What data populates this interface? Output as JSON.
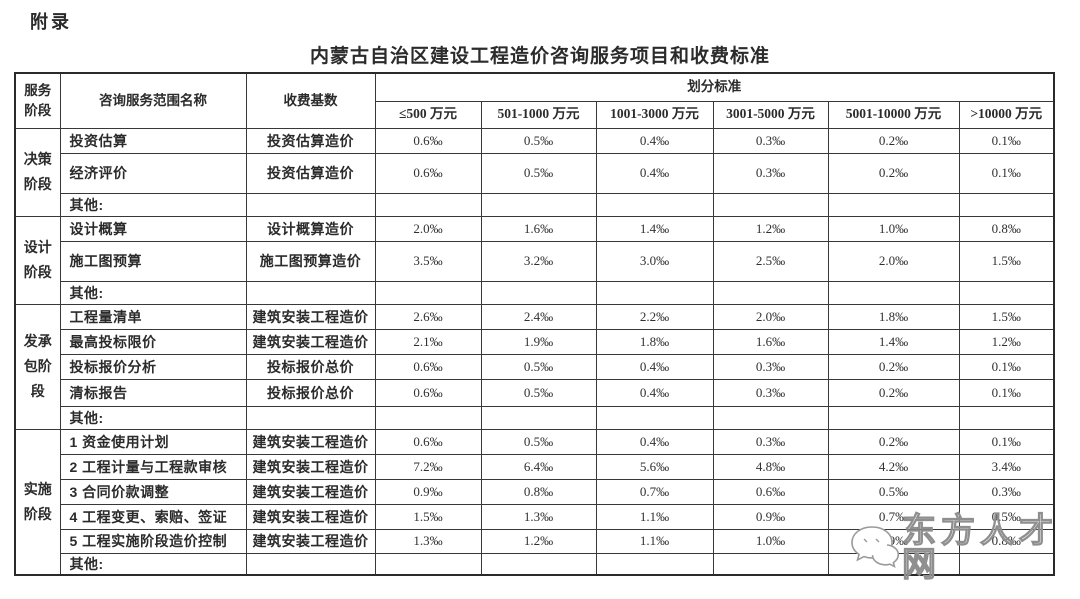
{
  "appendix_label": "附录",
  "title": "内蒙古自治区建设工程造价咨询服务项目和收费标准",
  "table": {
    "col_stage": "服务\n阶段",
    "col_scope": "咨询服务范围名称",
    "col_base": "收费基数",
    "col_standard": "划分标准",
    "ranges": [
      "≤500 万元",
      "501-1000 万元",
      "1001-3000 万元",
      "3001-5000 万元",
      "5001-10000 万元",
      ">10000 万元"
    ],
    "groups": [
      {
        "stage": "决策\n阶段",
        "rows": [
          {
            "name": "投资估算",
            "base": "投资估算造价",
            "values": [
              "0.6‰",
              "0.5‰",
              "0.4‰",
              "0.3‰",
              "0.2‰",
              "0.1‰"
            ]
          },
          {
            "name": "经济评价",
            "base": "投资估算造价",
            "values": [
              "0.6‰",
              "0.5‰",
              "0.4‰",
              "0.3‰",
              "0.2‰",
              "0.1‰"
            ]
          },
          {
            "name": "其他:",
            "base": "",
            "values": [
              "",
              "",
              "",
              "",
              "",
              ""
            ]
          }
        ]
      },
      {
        "stage": "设计\n阶段",
        "rows": [
          {
            "name": "设计概算",
            "base": "设计概算造价",
            "values": [
              "2.0‰",
              "1.6‰",
              "1.4‰",
              "1.2‰",
              "1.0‰",
              "0.8‰"
            ]
          },
          {
            "name": "施工图预算",
            "base": "施工图预算造价",
            "values": [
              "3.5‰",
              "3.2‰",
              "3.0‰",
              "2.5‰",
              "2.0‰",
              "1.5‰"
            ]
          },
          {
            "name": "其他:",
            "base": "",
            "values": [
              "",
              "",
              "",
              "",
              "",
              ""
            ]
          }
        ]
      },
      {
        "stage": "发承\n包阶\n段",
        "rows": [
          {
            "name": "工程量清单",
            "base": "建筑安装工程造价",
            "values": [
              "2.6‰",
              "2.4‰",
              "2.2‰",
              "2.0‰",
              "1.8‰",
              "1.5‰"
            ]
          },
          {
            "name": "最高投标限价",
            "base": "建筑安装工程造价",
            "values": [
              "2.1‰",
              "1.9‰",
              "1.8‰",
              "1.6‰",
              "1.4‰",
              "1.2‰"
            ]
          },
          {
            "name": "投标报价分析",
            "base": "投标报价总价",
            "values": [
              "0.6‰",
              "0.5‰",
              "0.4‰",
              "0.3‰",
              "0.2‰",
              "0.1‰"
            ]
          },
          {
            "name": "清标报告",
            "base": "投标报价总价",
            "values": [
              "0.6‰",
              "0.5‰",
              "0.4‰",
              "0.3‰",
              "0.2‰",
              "0.1‰"
            ]
          },
          {
            "name": "其他:",
            "base": "",
            "values": [
              "",
              "",
              "",
              "",
              "",
              ""
            ]
          }
        ]
      },
      {
        "stage": "实施\n阶段",
        "rows": [
          {
            "name": "1 资金使用计划",
            "base": "建筑安装工程造价",
            "values": [
              "0.6‰",
              "0.5‰",
              "0.4‰",
              "0.3‰",
              "0.2‰",
              "0.1‰"
            ]
          },
          {
            "name": "2 工程计量与工程款审核",
            "base": "建筑安装工程造价",
            "values": [
              "7.2‰",
              "6.4‰",
              "5.6‰",
              "4.8‰",
              "4.2‰",
              "3.4‰"
            ]
          },
          {
            "name": "3 合同价款调整",
            "base": "建筑安装工程造价",
            "values": [
              "0.9‰",
              "0.8‰",
              "0.7‰",
              "0.6‰",
              "0.5‰",
              "0.3‰"
            ]
          },
          {
            "name": "4 工程变更、索赔、签证",
            "base": "建筑安装工程造价",
            "values": [
              "1.5‰",
              "1.3‰",
              "1.1‰",
              "0.9‰",
              "0.7‰",
              "0.5‰"
            ]
          },
          {
            "name": "5 工程实施阶段造价控制",
            "base": "建筑安装工程造价",
            "values": [
              "1.3‰",
              "1.2‰",
              "1.1‰",
              "1.0‰",
              "0.9‰",
              "0.8‰"
            ]
          },
          {
            "name": "其他:",
            "base": "",
            "values": [
              "",
              "",
              "",
              "",
              "",
              ""
            ]
          }
        ]
      }
    ]
  },
  "watermark": {
    "text": "东方人才网",
    "icon": "chat-bubbles-icon",
    "outline_color": "#8f8f8f"
  }
}
